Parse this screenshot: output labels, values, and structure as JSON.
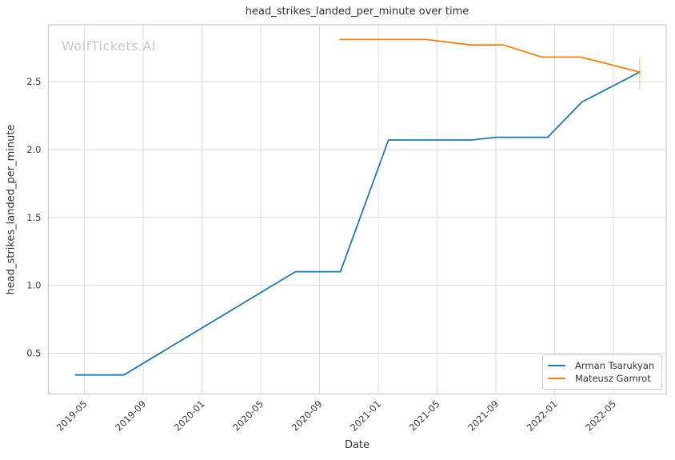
{
  "watermark": "WolfTickets.AI",
  "chart_data": {
    "type": "line",
    "title": "head_strikes_landed_per_minute over time",
    "xlabel": "Date",
    "ylabel": "head_strikes_landed_per_minute",
    "grid": true,
    "legend_position": "lower right",
    "x_ticks": [
      "2019-05",
      "2019-09",
      "2020-01",
      "2020-05",
      "2020-09",
      "2021-01",
      "2021-05",
      "2021-09",
      "2022-01",
      "2022-05"
    ],
    "y_ticks": [
      0.5,
      1.0,
      1.5,
      2.0,
      2.5
    ],
    "xlim": [
      "2019-02-17",
      "2022-08-19"
    ],
    "ylim": [
      0.2,
      2.92
    ],
    "series": [
      {
        "name": "Arman Tsarukyan",
        "color": "#1f77b4",
        "points": [
          [
            "2019-04-13",
            0.34
          ],
          [
            "2019-07-22",
            0.34
          ],
          [
            "2020-07-12",
            1.1
          ],
          [
            "2020-10-14",
            1.1
          ],
          [
            "2021-01-22",
            2.07
          ],
          [
            "2021-07-12",
            2.07
          ],
          [
            "2021-09-01",
            2.09
          ],
          [
            "2021-12-17",
            2.09
          ],
          [
            "2022-02-27",
            2.35
          ],
          [
            "2022-06-25",
            2.57
          ]
        ]
      },
      {
        "name": "Mateusz Gamrot",
        "color": "#ff7f0e",
        "points": [
          [
            "2020-10-13",
            2.81
          ],
          [
            "2021-04-09",
            2.81
          ],
          [
            "2021-07-09",
            2.77
          ],
          [
            "2021-09-17",
            2.77
          ],
          [
            "2021-12-05",
            2.68
          ],
          [
            "2022-02-25",
            2.68
          ],
          [
            "2022-06-25",
            2.57
          ]
        ]
      }
    ],
    "end_marker": {
      "date": "2022-06-25",
      "value_low": 2.44,
      "value_high": 2.68,
      "color": "#ff7f0e",
      "opacity": 0.35
    }
  }
}
